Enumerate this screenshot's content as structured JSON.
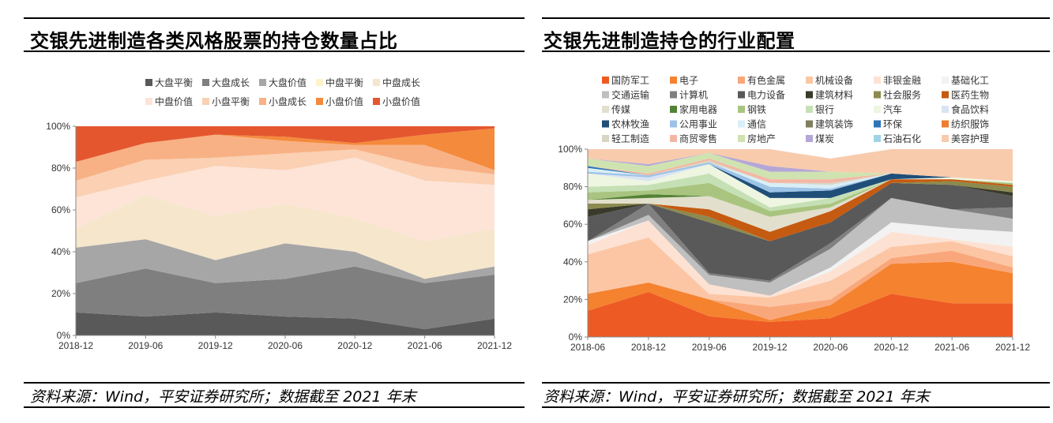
{
  "panels": [
    {
      "title": "交银先进制造各类风格股票的持仓数量占比",
      "source": "资料来源：Wind，平安证券研究所；数据截至 2021 年末"
    },
    {
      "title": "交银先进制造持仓的行业配置",
      "source": "资料来源：Wind，平安证券研究所；数据截至 2021 年末"
    }
  ],
  "chart_data": [
    {
      "type": "area",
      "stacked": true,
      "x": [
        "2018-12",
        "2019-06",
        "2019-12",
        "2020-06",
        "2020-12",
        "2021-06",
        "2021-12"
      ],
      "y_ticks": [
        "0%",
        "20%",
        "40%",
        "60%",
        "80%",
        "100%"
      ],
      "ylim": [
        0,
        100
      ],
      "grid": false,
      "legend_position": "top",
      "series": [
        {
          "name": "大盘平衡",
          "color": "#595959",
          "values": [
            11,
            9,
            11,
            9,
            8,
            3,
            8
          ]
        },
        {
          "name": "大盘成长",
          "color": "#7f7f7f",
          "values": [
            14,
            23,
            14,
            18,
            25,
            22,
            21
          ]
        },
        {
          "name": "大盘价值",
          "color": "#a6a6a6",
          "values": [
            17,
            14,
            11,
            17,
            7,
            2,
            4
          ]
        },
        {
          "name": "中盘平衡",
          "color": "#fff2cc",
          "values": [
            0,
            0,
            0,
            0,
            0,
            0,
            0
          ]
        },
        {
          "name": "中盘成长",
          "color": "#f5e6cc",
          "values": [
            9,
            21,
            21,
            19,
            16,
            18,
            18
          ]
        },
        {
          "name": "中盘价值",
          "color": "#fde4d7",
          "values": [
            15,
            7,
            24,
            16,
            29,
            29,
            21
          ]
        },
        {
          "name": "小盘平衡",
          "color": "#fbd0b3",
          "values": [
            8,
            10,
            4,
            8,
            4,
            7,
            5
          ]
        },
        {
          "name": "小盘成长",
          "color": "#f8b184",
          "values": [
            9,
            8,
            11,
            6,
            2,
            10,
            2
          ]
        },
        {
          "name": "小盘价值",
          "color": "#f48a3c",
          "values": [
            0,
            0,
            0,
            2,
            1,
            5,
            20
          ]
        },
        {
          "name": "小盘价值",
          "color": "#e4572e",
          "values": [
            17,
            8,
            4,
            5,
            8,
            4,
            1
          ]
        }
      ]
    },
    {
      "type": "area",
      "stacked": true,
      "x": [
        "2018-06",
        "2018-12",
        "2019-06",
        "2019-12",
        "2020-06",
        "2020-12",
        "2021-06",
        "2021-12"
      ],
      "y_ticks": [
        "0%",
        "20%",
        "40%",
        "60%",
        "80%",
        "100%"
      ],
      "ylim": [
        0,
        100
      ],
      "grid": false,
      "legend_position": "top",
      "series": [
        {
          "name": "国防军工",
          "color": "#ee5a24",
          "values": [
            14,
            24,
            11,
            8,
            10,
            23,
            18,
            18
          ]
        },
        {
          "name": "电子",
          "color": "#f5822f",
          "values": [
            9,
            5,
            9,
            1,
            7,
            16,
            22,
            16
          ]
        },
        {
          "name": "有色金属",
          "color": "#f9a77a",
          "values": [
            0,
            0,
            0,
            7,
            3,
            3,
            6,
            3
          ]
        },
        {
          "name": "机械设备",
          "color": "#fcc6a5",
          "values": [
            21,
            24,
            3,
            5,
            10,
            6,
            5,
            6
          ]
        },
        {
          "name": "非银金融",
          "color": "#fde2d3",
          "values": [
            5,
            9,
            5,
            1,
            5,
            8,
            1,
            5
          ]
        },
        {
          "name": "基础化工",
          "color": "#f2f2f2",
          "values": [
            2,
            0,
            0,
            0,
            2,
            5,
            6,
            8
          ]
        },
        {
          "name": "交通运输",
          "color": "#bfbfbf",
          "values": [
            0,
            3,
            5,
            7,
            10,
            13,
            10,
            7
          ]
        },
        {
          "name": "计算机",
          "color": "#808080",
          "values": [
            0,
            6,
            1,
            1,
            3,
            0,
            0,
            6
          ]
        },
        {
          "name": "电力设备",
          "color": "#595959",
          "values": [
            13,
            0,
            27,
            21,
            11,
            8,
            13,
            6
          ]
        },
        {
          "name": "建筑材料",
          "color": "#3a3a2a",
          "values": [
            4,
            0,
            0,
            0,
            0,
            0,
            0,
            2
          ]
        },
        {
          "name": "社会服务",
          "color": "#8c8a4e",
          "values": [
            3,
            0,
            3,
            0,
            0,
            0,
            2,
            3
          ]
        },
        {
          "name": "医药生物",
          "color": "#c55a11",
          "values": [
            0,
            0,
            4,
            5,
            6,
            2,
            1,
            1
          ]
        },
        {
          "name": "传媒",
          "color": "#e2dfcc",
          "values": [
            2,
            3,
            7,
            8,
            2,
            0,
            0,
            0
          ]
        },
        {
          "name": "家用电器",
          "color": "#548235",
          "values": [
            0,
            2,
            0,
            0,
            0,
            0,
            0,
            0
          ]
        },
        {
          "name": "钢铁",
          "color": "#a9c47f",
          "values": [
            4,
            2,
            7,
            3,
            2,
            0,
            0,
            1
          ]
        },
        {
          "name": "银行",
          "color": "#c5e0b4",
          "values": [
            3,
            3,
            5,
            2,
            3,
            0,
            0,
            0
          ]
        },
        {
          "name": "汽车",
          "color": "#eef5e1",
          "values": [
            7,
            2,
            5,
            5,
            0,
            0,
            1,
            1
          ]
        },
        {
          "name": "食品饮料",
          "color": "#dae3f3",
          "values": [
            0,
            2,
            0,
            0,
            0,
            0,
            0,
            0
          ]
        },
        {
          "name": "农林牧渔",
          "color": "#1f4e79",
          "values": [
            0,
            0,
            0,
            3,
            4,
            3,
            0,
            0
          ]
        },
        {
          "name": "公用事业",
          "color": "#9dc3e6",
          "values": [
            1,
            1,
            1,
            3,
            1,
            0,
            0,
            0
          ]
        },
        {
          "name": "通信",
          "color": "#d9eef6",
          "values": [
            2,
            0,
            0,
            2,
            2,
            0,
            0,
            0
          ]
        },
        {
          "name": "建筑装饰",
          "color": "#7f7f5f",
          "values": [
            0,
            0,
            0,
            0,
            0,
            0,
            0,
            0
          ]
        },
        {
          "name": "环保",
          "color": "#2e75b6",
          "values": [
            1,
            0,
            0,
            0,
            0,
            0,
            0,
            0
          ]
        },
        {
          "name": "纺织服饰",
          "color": "#ed7d31",
          "values": [
            0,
            0,
            0,
            0,
            0,
            0,
            0,
            0
          ]
        },
        {
          "name": "轻工制造",
          "color": "#d9d4c3",
          "values": [
            0,
            0,
            1,
            0,
            1,
            0,
            0,
            0
          ]
        },
        {
          "name": "商贸零售",
          "color": "#f4b6a4",
          "values": [
            0,
            1,
            1,
            2,
            2,
            0,
            0,
            0
          ]
        },
        {
          "name": "房地产",
          "color": "#cfe3b0",
          "values": [
            4,
            4,
            3,
            4,
            4,
            0,
            0,
            0
          ]
        },
        {
          "name": "煤炭",
          "color": "#b4a7d6",
          "values": [
            0,
            1,
            0,
            3,
            0,
            0,
            0,
            0
          ]
        },
        {
          "name": "石油石化",
          "color": "#9fd3e8",
          "values": [
            0,
            0,
            0,
            0,
            0,
            0,
            0,
            0
          ]
        },
        {
          "name": "美容护理",
          "color": "#f8cbad",
          "values": [
            5,
            8,
            2,
            9,
            7,
            13,
            15,
            17
          ]
        }
      ]
    }
  ]
}
